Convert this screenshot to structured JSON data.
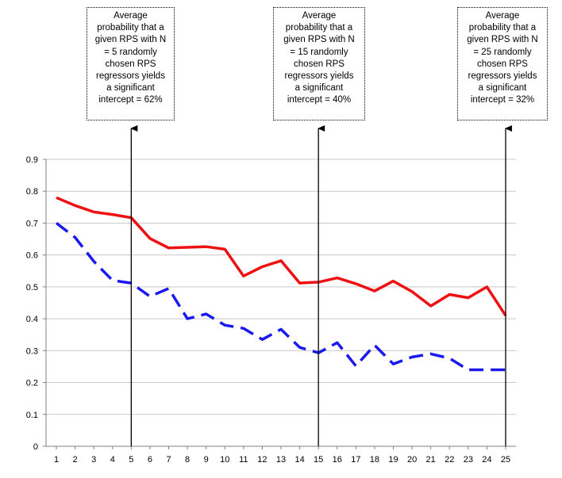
{
  "chart_data": {
    "type": "line",
    "x": [
      1,
      2,
      3,
      4,
      5,
      6,
      7,
      8,
      9,
      10,
      11,
      12,
      13,
      14,
      15,
      16,
      17,
      18,
      19,
      20,
      21,
      22,
      23,
      24,
      25
    ],
    "ylim": [
      0,
      0.9
    ],
    "yticks": [
      "0",
      "0.1",
      "0.2",
      "0.3",
      "0.4",
      "0.5",
      "0.6",
      "0.7",
      "0.8",
      "0.9"
    ],
    "xticks": [
      "1",
      "2",
      "3",
      "4",
      "5",
      "6",
      "7",
      "8",
      "9",
      "10",
      "11",
      "12",
      "13",
      "14",
      "15",
      "16",
      "17",
      "18",
      "19",
      "20",
      "21",
      "22",
      "23",
      "24",
      "25"
    ],
    "grid": true,
    "series": [
      {
        "style": "solid",
        "color": "#ee1111",
        "values": [
          0.78,
          0.755,
          0.735,
          0.727,
          0.717,
          0.652,
          0.622,
          0.624,
          0.626,
          0.618,
          0.534,
          0.563,
          0.582,
          0.512,
          0.515,
          0.528,
          0.51,
          0.487,
          0.518,
          0.485,
          0.44,
          0.476,
          0.466,
          0.5,
          0.41
        ]
      },
      {
        "style": "dashed",
        "color": "#1a1aee",
        "values": [
          0.7,
          0.655,
          0.58,
          0.52,
          0.512,
          0.47,
          0.495,
          0.4,
          0.415,
          0.38,
          0.37,
          0.335,
          0.367,
          0.31,
          0.293,
          0.325,
          0.252,
          0.317,
          0.258,
          0.28,
          0.29,
          0.276,
          0.24,
          0.24,
          0.24
        ]
      }
    ],
    "annotations": [
      {
        "x": 5,
        "text": "Average\nprobability that a\ngiven RPS with N\n= 5 randomly\nchosen RPS\nregressors yields\na significant\nintercept = 62%"
      },
      {
        "x": 15,
        "text": "Average\nprobability that a\ngiven RPS with N\n= 15 randomly\nchosen RPS\nregressors yields\na significant\nintercept = 40%"
      },
      {
        "x": 25,
        "text": "Average\nprobability that a\ngiven RPS with N\n= 25 randomly\nchosen RPS\nregressors yields\na significant\nintercept = 32%"
      }
    ],
    "colors": {
      "grid": "#c8c8c8",
      "axis": "#808080",
      "arrow": "#000000"
    }
  }
}
